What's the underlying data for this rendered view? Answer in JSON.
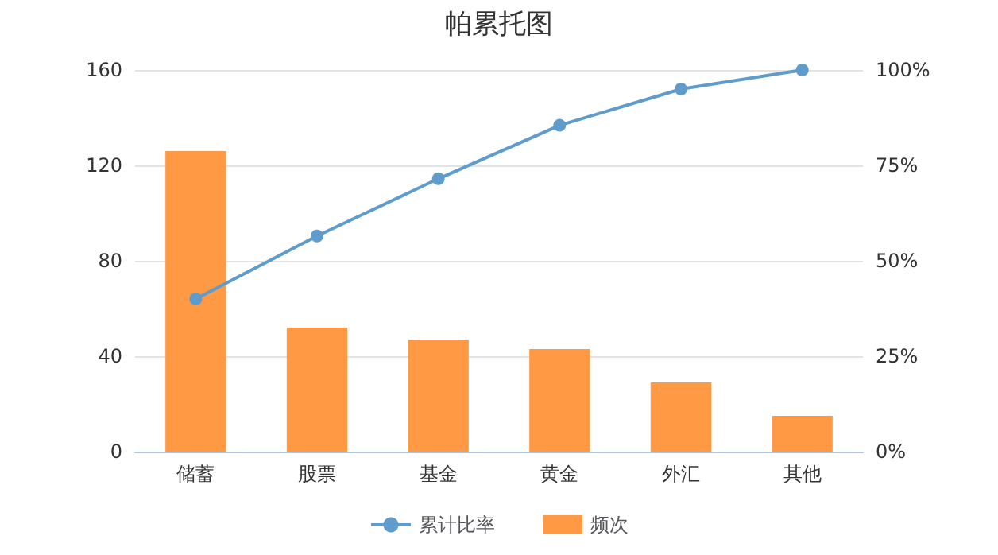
{
  "chart_data": {
    "type": "bar",
    "title": "帕累托图",
    "categories": [
      "储蓄",
      "股票",
      "基金",
      "黄金",
      "外汇",
      "其他"
    ],
    "series": [
      {
        "name": "累计比率",
        "type": "line",
        "axis": "y2",
        "color": "#5f9ccb",
        "values": [
          40,
          56.5,
          71.5,
          85.5,
          95,
          100
        ]
      },
      {
        "name": "频次",
        "color": "#ff9944",
        "values": [
          126,
          52,
          47,
          43,
          29,
          15
        ]
      }
    ],
    "ylim": [
      0,
      160
    ],
    "yticks": [
      0,
      40,
      80,
      120,
      160
    ],
    "y2lim": [
      0,
      100
    ],
    "y2ticks": [
      {
        "value": 0,
        "label": "0%"
      },
      {
        "value": 25,
        "label": "25%"
      },
      {
        "value": 50,
        "label": "50%"
      },
      {
        "value": 75,
        "label": "75%"
      },
      {
        "value": 100,
        "label": "100%"
      }
    ],
    "grid": "y",
    "legend": "bottom",
    "marker": "circle"
  }
}
